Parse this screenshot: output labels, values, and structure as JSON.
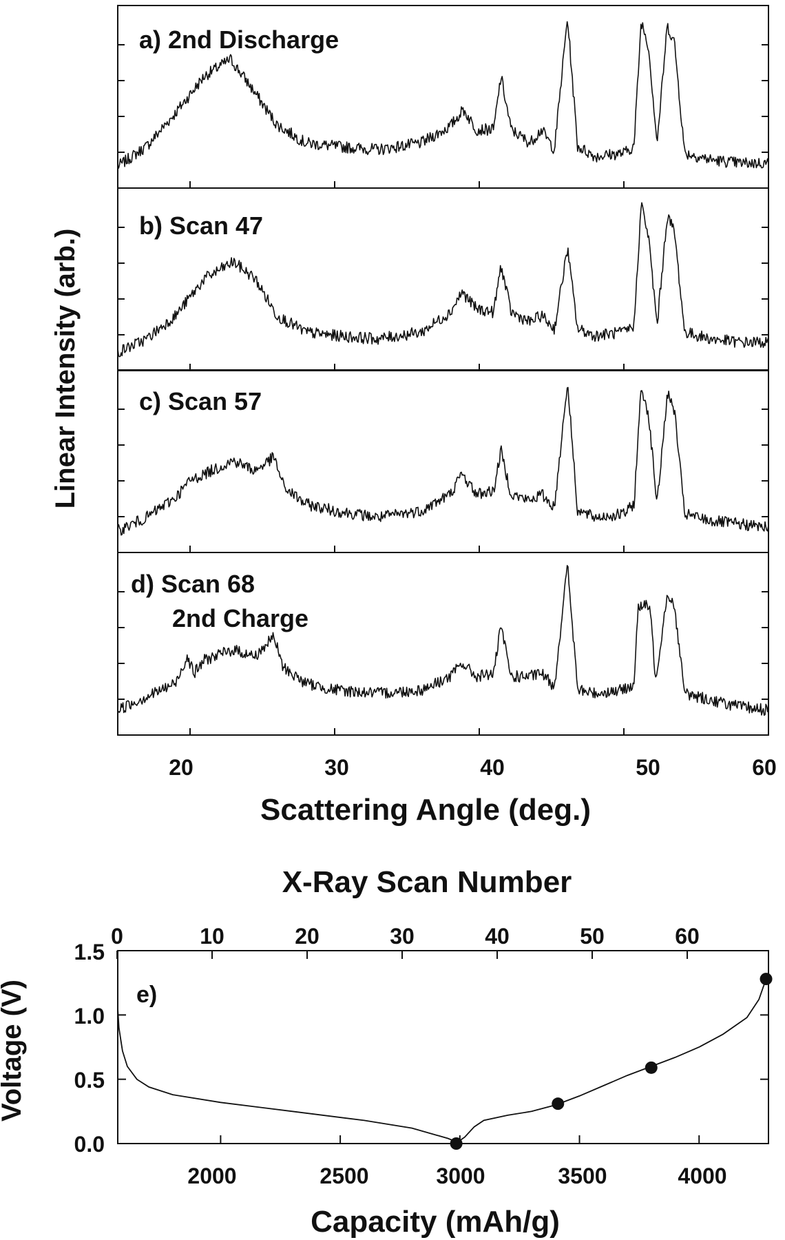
{
  "xrd": {
    "ylabel": "Linear Intensity (arb.)",
    "xlabel": "Scattering Angle (deg.)",
    "x_ticks": [
      "20",
      "30",
      "40",
      "50",
      "60"
    ],
    "panels": [
      {
        "label": "a) 2nd Discharge"
      },
      {
        "label": "b) Scan 47"
      },
      {
        "label": "c) Scan 57"
      },
      {
        "label": "d) Scan 68",
        "label2": "2nd Charge"
      }
    ]
  },
  "voltage": {
    "label": "e)",
    "top_axis_label": "X-Ray Scan Number",
    "top_ticks": [
      "0",
      "10",
      "20",
      "30",
      "40",
      "50",
      "60"
    ],
    "ylabel": "Voltage (V)",
    "y_ticks": [
      "0.0",
      "0.5",
      "1.0",
      "1.5"
    ],
    "xlabel": "Capacity (mAh/g)",
    "x_ticks": [
      "2000",
      "2500",
      "3000",
      "3500",
      "4000"
    ]
  },
  "chart_data": [
    {
      "type": "line",
      "panel": "a) 2nd Discharge",
      "xlabel": "Scattering Angle (deg.)",
      "ylabel": "Linear Intensity (arb.)",
      "xlim": [
        15,
        60
      ],
      "x": [
        15,
        17,
        19,
        21,
        22.8,
        24,
        26,
        28,
        30,
        33,
        36,
        38,
        38.9,
        39.8,
        41,
        41.5,
        42.2,
        43.5,
        44.3,
        45.2,
        46.1,
        46.8,
        48,
        50,
        50.7,
        51.2,
        51.7,
        52.3,
        53,
        53.5,
        54.2,
        56,
        58,
        60
      ],
      "y": [
        0.08,
        0.2,
        0.4,
        0.62,
        0.72,
        0.58,
        0.33,
        0.22,
        0.2,
        0.18,
        0.22,
        0.32,
        0.42,
        0.3,
        0.3,
        0.62,
        0.3,
        0.22,
        0.3,
        0.18,
        0.97,
        0.2,
        0.14,
        0.16,
        0.2,
        0.95,
        0.8,
        0.22,
        0.92,
        0.82,
        0.16,
        0.12,
        0.1,
        0.1
      ]
    },
    {
      "type": "line",
      "panel": "b) Scan 47",
      "xlabel": "Scattering Angle (deg.)",
      "ylabel": "Linear Intensity (arb.)",
      "xlim": [
        15,
        60
      ],
      "x": [
        15,
        17,
        19,
        21,
        23,
        24.5,
        26,
        28,
        30,
        33,
        36,
        38,
        38.8,
        39.8,
        41,
        41.5,
        42.2,
        43.5,
        44.3,
        45.2,
        46.1,
        46.8,
        48,
        50,
        50.7,
        51.2,
        51.7,
        52.3,
        53,
        53.5,
        54.2,
        56,
        58,
        60
      ],
      "y": [
        0.06,
        0.14,
        0.28,
        0.5,
        0.6,
        0.5,
        0.28,
        0.18,
        0.16,
        0.14,
        0.18,
        0.3,
        0.42,
        0.32,
        0.3,
        0.58,
        0.3,
        0.24,
        0.28,
        0.2,
        0.68,
        0.2,
        0.16,
        0.18,
        0.22,
        0.95,
        0.75,
        0.22,
        0.88,
        0.78,
        0.18,
        0.14,
        0.12,
        0.12
      ]
    },
    {
      "type": "line",
      "panel": "c) Scan 57",
      "xlabel": "Scattering Angle (deg.)",
      "ylabel": "Linear Intensity (arb.)",
      "xlim": [
        15,
        60
      ],
      "x": [
        15,
        17,
        19,
        20,
        21,
        23,
        24.5,
        25.8,
        26.5,
        28,
        30,
        33,
        36,
        38,
        38.8,
        39.8,
        41,
        41.5,
        42.2,
        43.5,
        44.3,
        45.2,
        46.1,
        46.8,
        48,
        50,
        50.7,
        51.2,
        51.7,
        52.3,
        53,
        53.5,
        54.2,
        56,
        58,
        60
      ],
      "y": [
        0.08,
        0.16,
        0.28,
        0.38,
        0.42,
        0.5,
        0.44,
        0.52,
        0.34,
        0.24,
        0.2,
        0.16,
        0.2,
        0.3,
        0.42,
        0.3,
        0.32,
        0.56,
        0.3,
        0.26,
        0.3,
        0.22,
        0.97,
        0.2,
        0.16,
        0.18,
        0.24,
        0.94,
        0.78,
        0.24,
        0.9,
        0.8,
        0.18,
        0.14,
        0.12,
        0.1
      ]
    },
    {
      "type": "line",
      "panel": "d) Scan 68 2nd Charge",
      "xlabel": "Scattering Angle (deg.)",
      "ylabel": "Linear Intensity (arb.)",
      "xlim": [
        15,
        60
      ],
      "x": [
        15,
        17,
        19,
        19.8,
        20.3,
        21,
        23,
        24.5,
        25.8,
        26.4,
        27,
        28,
        30,
        33,
        36,
        38,
        38.8,
        39.8,
        41,
        41.5,
        42.2,
        43.5,
        44.3,
        45.2,
        46.1,
        46.8,
        48,
        50,
        50.7,
        51,
        51.8,
        52.2,
        53,
        53.5,
        54.2,
        56,
        58,
        60
      ],
      "y": [
        0.1,
        0.18,
        0.26,
        0.42,
        0.32,
        0.4,
        0.46,
        0.42,
        0.54,
        0.36,
        0.32,
        0.26,
        0.22,
        0.2,
        0.22,
        0.3,
        0.38,
        0.3,
        0.32,
        0.6,
        0.3,
        0.3,
        0.32,
        0.24,
        0.97,
        0.22,
        0.2,
        0.22,
        0.26,
        0.72,
        0.72,
        0.28,
        0.8,
        0.72,
        0.2,
        0.16,
        0.12,
        0.1
      ]
    },
    {
      "type": "line",
      "panel": "e)",
      "xlabel": "Capacity (mAh/g)",
      "ylabel": "Voltage (V)",
      "top_axis_label": "X-Ray Scan Number",
      "xlim": [
        1570,
        4290
      ],
      "ylim": [
        0,
        1.5
      ],
      "curve": {
        "x": [
          1570,
          1575,
          1590,
          1610,
          1650,
          1700,
          1800,
          2000,
          2300,
          2600,
          2800,
          2950,
          2990,
          3020,
          3060,
          3100,
          3200,
          3300,
          3400,
          3500,
          3600,
          3700,
          3800,
          3900,
          4000,
          4100,
          4200,
          4250,
          4280
        ],
        "y": [
          1.05,
          0.9,
          0.72,
          0.6,
          0.5,
          0.44,
          0.38,
          0.32,
          0.25,
          0.18,
          0.12,
          0.04,
          0.01,
          0.05,
          0.13,
          0.18,
          0.22,
          0.25,
          0.3,
          0.37,
          0.45,
          0.53,
          0.6,
          0.67,
          0.75,
          0.85,
          0.98,
          1.12,
          1.28
        ]
      },
      "markers": {
        "x": [
          2985,
          3410,
          3800,
          4280
        ],
        "y": [
          0.0,
          0.31,
          0.59,
          1.28
        ]
      }
    }
  ]
}
